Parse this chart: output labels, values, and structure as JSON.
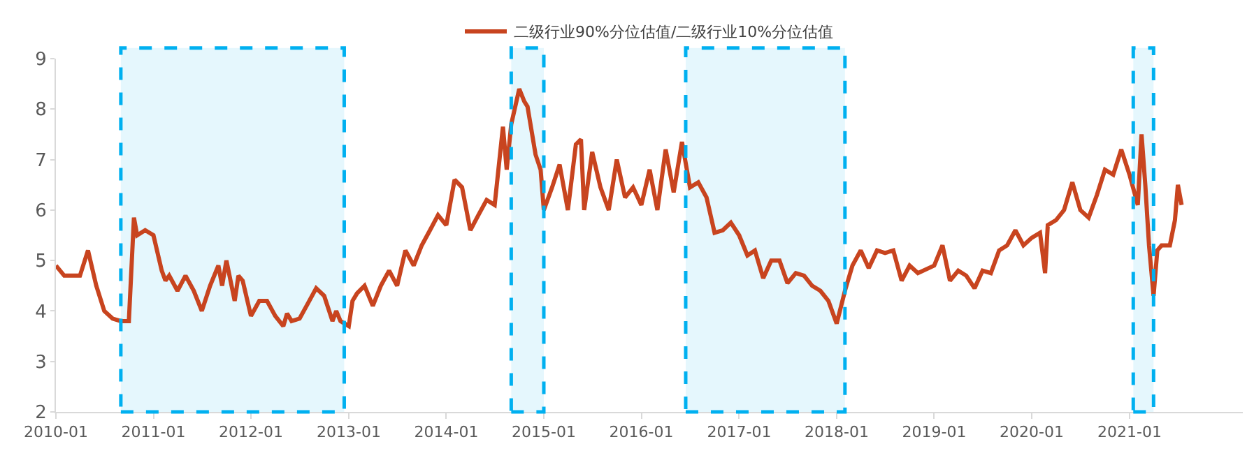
{
  "chart_data": {
    "type": "line",
    "legend": "top",
    "x": [
      "2010-01-01",
      "2010-02-01",
      "2010-04-01",
      "2010-05-01",
      "2010-06-01",
      "2010-07-01",
      "2010-08-01",
      "2010-09-01",
      "2010-10-01",
      "2010-10-20",
      "2010-11-01",
      "2010-12-01",
      "2011-01-01",
      "2011-02-01",
      "2011-02-15",
      "2011-03-01",
      "2011-04-01",
      "2011-05-01",
      "2011-06-01",
      "2011-07-01",
      "2011-08-01",
      "2011-09-01",
      "2011-09-15",
      "2011-10-01",
      "2011-11-01",
      "2011-11-15",
      "2011-12-01",
      "2012-01-01",
      "2012-02-01",
      "2012-03-01",
      "2012-04-01",
      "2012-05-01",
      "2012-05-15",
      "2012-06-01",
      "2012-07-01",
      "2012-08-01",
      "2012-09-01",
      "2012-10-01",
      "2012-11-01",
      "2012-11-15",
      "2012-12-01",
      "2013-01-01",
      "2013-01-15",
      "2013-02-01",
      "2013-03-01",
      "2013-04-01",
      "2013-05-01",
      "2013-06-01",
      "2013-07-01",
      "2013-08-01",
      "2013-09-01",
      "2013-10-01",
      "2013-11-01",
      "2013-12-01",
      "2014-01-01",
      "2014-02-01",
      "2014-03-01",
      "2014-04-01",
      "2014-05-01",
      "2014-06-01",
      "2014-07-01",
      "2014-08-01",
      "2014-08-15",
      "2014-09-01",
      "2014-10-01",
      "2014-10-20",
      "2014-11-01",
      "2014-12-01",
      "2014-12-20",
      "2015-01-01",
      "2015-02-01",
      "2015-03-01",
      "2015-04-01",
      "2015-05-01",
      "2015-05-20",
      "2015-06-01",
      "2015-07-01",
      "2015-08-01",
      "2015-09-01",
      "2015-10-01",
      "2015-11-01",
      "2015-12-01",
      "2016-01-01",
      "2016-02-01",
      "2016-03-01",
      "2016-04-01",
      "2016-05-01",
      "2016-06-01",
      "2016-07-01",
      "2016-08-01",
      "2016-09-01",
      "2016-10-01",
      "2016-11-01",
      "2016-12-01",
      "2017-01-01",
      "2017-02-01",
      "2017-03-01",
      "2017-04-01",
      "2017-05-01",
      "2017-06-01",
      "2017-07-01",
      "2017-08-01",
      "2017-09-01",
      "2017-10-01",
      "2017-11-01",
      "2017-12-01",
      "2018-01-01",
      "2018-02-01",
      "2018-03-01",
      "2018-04-01",
      "2018-05-01",
      "2018-06-01",
      "2018-07-01",
      "2018-08-01",
      "2018-09-01",
      "2018-10-01",
      "2018-11-01",
      "2019-01-01",
      "2019-02-01",
      "2019-03-01",
      "2019-04-01",
      "2019-05-01",
      "2019-06-01",
      "2019-07-01",
      "2019-08-01",
      "2019-09-01",
      "2019-10-01",
      "2019-11-01",
      "2019-12-01",
      "2020-01-01",
      "2020-02-01",
      "2020-02-20",
      "2020-03-01",
      "2020-04-01",
      "2020-05-01",
      "2020-06-01",
      "2020-07-01",
      "2020-08-01",
      "2020-09-01",
      "2020-10-01",
      "2020-11-01",
      "2020-12-01",
      "2021-01-01",
      "2021-02-01",
      "2021-02-15",
      "2021-03-01",
      "2021-03-15",
      "2021-04-01",
      "2021-04-15",
      "2021-05-01",
      "2021-06-01",
      "2021-06-20",
      "2021-07-01",
      "2021-07-15"
    ],
    "series": [
      {
        "name": "二级行业90%分位估值/二级行业10%分位估值",
        "color": "#c8441f",
        "values": [
          4.9,
          4.7,
          4.7,
          5.2,
          4.5,
          4.0,
          3.85,
          3.8,
          3.8,
          5.85,
          5.5,
          5.6,
          5.5,
          4.8,
          4.6,
          4.7,
          4.4,
          4.7,
          4.4,
          4.0,
          4.5,
          4.9,
          4.5,
          5.0,
          4.2,
          4.7,
          4.6,
          3.9,
          4.2,
          4.2,
          3.9,
          3.7,
          3.95,
          3.8,
          3.85,
          4.15,
          4.45,
          4.3,
          3.8,
          4.0,
          3.8,
          3.7,
          4.2,
          4.35,
          4.5,
          4.1,
          4.5,
          4.8,
          4.5,
          5.2,
          4.9,
          5.3,
          5.6,
          5.9,
          5.7,
          6.6,
          6.45,
          5.6,
          5.9,
          6.2,
          6.1,
          7.65,
          6.8,
          7.7,
          8.4,
          8.15,
          8.05,
          7.1,
          6.8,
          6.0,
          6.45,
          6.9,
          6.0,
          7.3,
          7.4,
          6.0,
          7.15,
          6.45,
          6.0,
          7.0,
          6.25,
          6.45,
          6.1,
          6.8,
          6.0,
          7.2,
          6.35,
          7.35,
          6.45,
          6.55,
          6.25,
          5.55,
          5.6,
          5.75,
          5.5,
          5.1,
          5.2,
          4.65,
          5.0,
          5.0,
          4.55,
          4.75,
          4.7,
          4.5,
          4.4,
          4.2,
          3.75,
          4.4,
          4.9,
          5.2,
          4.85,
          5.2,
          5.15,
          5.2,
          4.6,
          4.9,
          4.75,
          4.9,
          5.3,
          4.6,
          4.8,
          4.7,
          4.45,
          4.8,
          4.75,
          5.2,
          5.3,
          5.6,
          5.3,
          5.45,
          5.55,
          4.75,
          5.7,
          5.8,
          6.0,
          6.55,
          6.0,
          5.85,
          6.3,
          6.8,
          6.7,
          7.2,
          6.7,
          6.1,
          7.5,
          6.5,
          5.3,
          4.3,
          5.2,
          5.3,
          5.3,
          5.8,
          6.5,
          6.1
        ]
      }
    ],
    "xlim": [
      "2010-01-01",
      "2022-03-01"
    ],
    "xticks": [
      "2010-01",
      "2011-01",
      "2012-01",
      "2013-01",
      "2014-01",
      "2015-01",
      "2016-01",
      "2017-01",
      "2018-01",
      "2019-01",
      "2020-01",
      "2021-01"
    ],
    "ylim": [
      2,
      9
    ],
    "yticks": [
      2,
      3,
      4,
      5,
      6,
      7,
      8,
      9
    ],
    "bands": [
      {
        "axis": "x",
        "from": "2010-09-01",
        "to": "2012-12-15",
        "color": "#00b0f0"
      },
      {
        "axis": "x",
        "from": "2014-09-01",
        "to": "2015-01-01",
        "color": "#00b0f0"
      },
      {
        "axis": "x",
        "from": "2016-06-15",
        "to": "2018-02-01",
        "color": "#00b0f0"
      },
      {
        "axis": "x",
        "from": "2021-01-15",
        "to": "2021-04-01",
        "color": "#00b0f0"
      }
    ]
  }
}
